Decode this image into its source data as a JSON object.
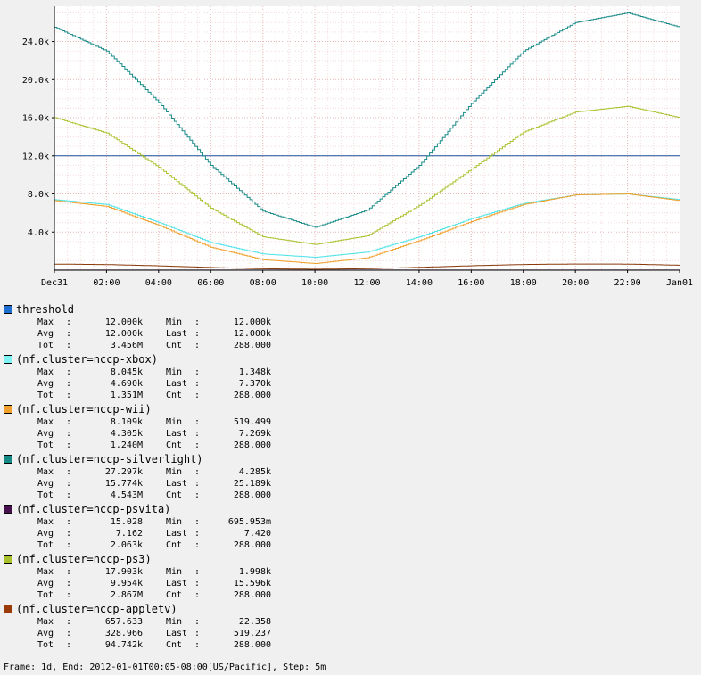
{
  "chart_data": {
    "type": "line",
    "x_tick_labels": [
      "Dec31",
      "02:00",
      "04:00",
      "06:00",
      "08:00",
      "10:00",
      "12:00",
      "14:00",
      "16:00",
      "18:00",
      "20:00",
      "22:00",
      "Jan01"
    ],
    "y_tick_labels": [
      "4.0k",
      "8.0k",
      "12.0k",
      "16.0k",
      "20.0k",
      "24.0k"
    ],
    "y_ticks": [
      4000,
      8000,
      12000,
      16000,
      20000,
      24000
    ],
    "xlim": [
      0,
      24
    ],
    "ylim": [
      0,
      27700
    ],
    "x_unit": "hours since Dec31 00:00",
    "grid": true,
    "series": [
      {
        "name": "threshold",
        "color": "#1f4e9a",
        "x": [
          0,
          24
        ],
        "values": [
          12000,
          12000
        ]
      },
      {
        "name": "(nf.cluster=nccp-xbox)",
        "color": "#4fe3e8",
        "x": [
          0,
          2,
          4,
          6,
          8,
          10,
          12,
          14,
          16,
          18,
          20,
          22,
          24
        ],
        "values": [
          7400,
          6900,
          5000,
          2900,
          1700,
          1350,
          1900,
          3500,
          5400,
          7000,
          7900,
          8000,
          7400
        ]
      },
      {
        "name": "(nf.cluster=nccp-wii)",
        "color": "#f0a02a",
        "x": [
          0,
          2,
          4,
          6,
          8,
          10,
          12,
          14,
          16,
          18,
          20,
          22,
          24
        ],
        "values": [
          7300,
          6700,
          4700,
          2400,
          1100,
          700,
          1300,
          3100,
          5100,
          6900,
          7900,
          8000,
          7300
        ]
      },
      {
        "name": "(nf.cluster=nccp-silverlight)",
        "color": "#178a88",
        "x": [
          0,
          2,
          4,
          6,
          8,
          10,
          12,
          14,
          16,
          18,
          20,
          22,
          24
        ],
        "values": [
          25500,
          23000,
          17600,
          11000,
          6200,
          4500,
          6300,
          11000,
          17500,
          23000,
          26000,
          27000,
          25500
        ]
      },
      {
        "name": "(nf.cluster=nccp-psvita)",
        "color": "#4a0f4f",
        "x": [
          0,
          2,
          4,
          6,
          8,
          10,
          12,
          14,
          16,
          18,
          20,
          22,
          24
        ],
        "values": [
          8,
          9,
          10,
          10,
          7,
          7,
          7,
          8,
          9,
          10,
          10,
          9,
          7
        ]
      },
      {
        "name": "(nf.cluster=nccp-ps3)",
        "color": "#a9c12c",
        "x": [
          0,
          2,
          4,
          6,
          8,
          10,
          12,
          14,
          16,
          18,
          20,
          22,
          24
        ],
        "values": [
          16000,
          14400,
          10800,
          6500,
          3500,
          2700,
          3600,
          6800,
          10600,
          14500,
          16600,
          17200,
          16000
        ]
      },
      {
        "name": "(nf.cluster=nccp-appletv)",
        "color": "#8a3a0c",
        "x": [
          0,
          2,
          4,
          6,
          8,
          10,
          12,
          14,
          16,
          18,
          20,
          22,
          24
        ],
        "values": [
          640,
          590,
          460,
          280,
          150,
          100,
          160,
          300,
          470,
          600,
          650,
          640,
          520
        ]
      }
    ]
  },
  "legend": [
    {
      "label": "threshold",
      "color": "#1f6fd1",
      "max": "12.000k",
      "min": "12.000k",
      "avg": "12.000k",
      "last": "12.000k",
      "tot": "3.456M",
      "cnt": "288.000"
    },
    {
      "label": "(nf.cluster=nccp-xbox)",
      "color": "#7ff4f4",
      "max": "8.045k",
      "min": "1.348k",
      "avg": "4.690k",
      "last": "7.370k",
      "tot": "1.351M",
      "cnt": "288.000"
    },
    {
      "label": "(nf.cluster=nccp-wii)",
      "color": "#f2a030",
      "max": "8.109k",
      "min": "519.499",
      "avg": "4.305k",
      "last": "7.269k",
      "tot": "1.240M",
      "cnt": "288.000"
    },
    {
      "label": "(nf.cluster=nccp-silverlight)",
      "color": "#178a88",
      "max": "27.297k",
      "min": "4.285k",
      "avg": "15.774k",
      "last": "25.189k",
      "tot": "4.543M",
      "cnt": "288.000"
    },
    {
      "label": "(nf.cluster=nccp-psvita)",
      "color": "#4a0f4f",
      "max": "15.028",
      "min": "695.953m",
      "avg": "7.162",
      "last": "7.420",
      "tot": "2.063k",
      "cnt": "288.000"
    },
    {
      "label": "(nf.cluster=nccp-ps3)",
      "color": "#a9c12c",
      "max": "17.903k",
      "min": "1.998k",
      "avg": "9.954k",
      "last": "15.596k",
      "tot": "2.867M",
      "cnt": "288.000"
    },
    {
      "label": "(nf.cluster=nccp-appletv)",
      "color": "#9a3a08",
      "max": "657.633",
      "min": "22.358",
      "avg": "328.966",
      "last": "519.237",
      "tot": "94.742k",
      "cnt": "288.000"
    }
  ],
  "stat_labels": {
    "max": "Max",
    "min": "Min",
    "avg": "Avg",
    "last": "Last",
    "tot": "Tot",
    "cnt": "Cnt",
    "sep": ":"
  },
  "footer": "Frame: 1d, End: 2012-01-01T00:05-08:00[US/Pacific], Step: 5m"
}
